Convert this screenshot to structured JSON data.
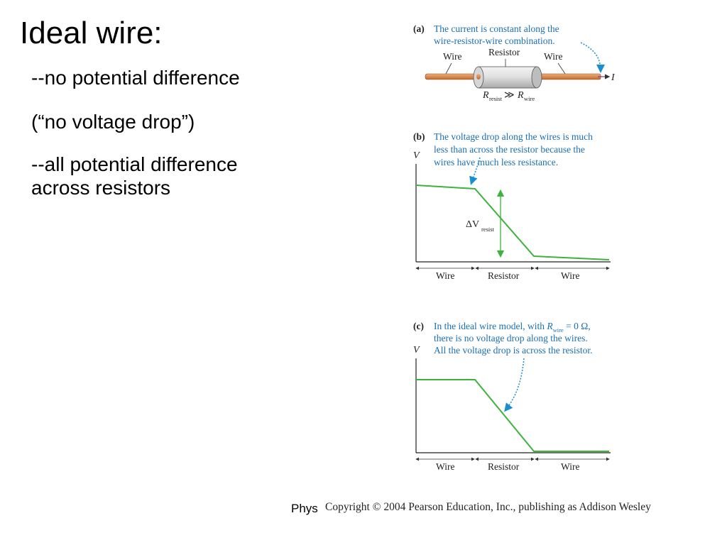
{
  "slide": {
    "title": "Ideal wire:",
    "bullets": [
      "--no potential difference",
      "(“no voltage drop”)",
      "--all potential difference",
      "across resistors"
    ],
    "footer": "Phys",
    "copyright": "Copyright © 2004 Pearson Education, Inc., publishing as Addison Wesley"
  },
  "figure": {
    "a": {
      "tag": "(a)",
      "caption": [
        "The current is constant along the",
        "wire-resistor-wire combination."
      ],
      "labels": {
        "wire_left": "Wire",
        "resistor": "Resistor",
        "wire_right": "Wire",
        "current": "I"
      },
      "relation": {
        "r": "R",
        "resist_sub": "resist",
        "gg": "≫",
        "r2": "R",
        "wire_sub": "wire"
      }
    },
    "b": {
      "tag": "(b)",
      "caption": [
        "The voltage drop along the wires is much",
        "less than across the resistor because the",
        "wires have much less resistance."
      ],
      "axis_v": "V",
      "delta": {
        "d": "ΔV",
        "sub": "resist"
      },
      "segments": [
        "Wire",
        "Resistor",
        "Wire"
      ]
    },
    "c": {
      "tag": "(c)",
      "caption": {
        "line1_a": "In the ideal wire model, with ",
        "line1_r": "R",
        "line1_sub": "wire",
        "line1_b": " = 0 Ω,",
        "line2": "there is no voltage drop along the wires.",
        "line3": "All the voltage drop is across the resistor."
      },
      "axis_v": "V",
      "segments": [
        "Wire",
        "Resistor",
        "Wire"
      ]
    },
    "colors": {
      "caption": "#1a6fb3",
      "curve": "#3cb43c",
      "wire": "#d98a4a",
      "arrow": "#1a8fd0"
    }
  }
}
